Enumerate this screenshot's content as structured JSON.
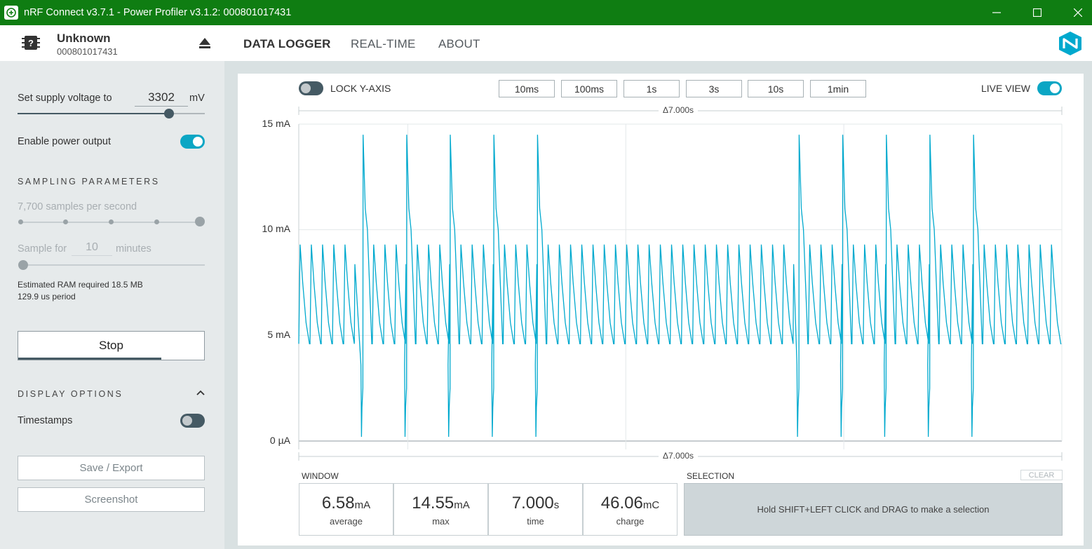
{
  "titlebar": {
    "title": "nRF Connect v3.7.1 - Power Profiler v3.1.2: 000801017431"
  },
  "window_controls": {
    "minimize": "—",
    "maximize": "☐",
    "close": "✕"
  },
  "header": {
    "device_name": "Unknown",
    "device_serial": "000801017431",
    "tabs": [
      {
        "label": "DATA LOGGER",
        "active": true
      },
      {
        "label": "REAL-TIME",
        "active": false
      },
      {
        "label": "ABOUT",
        "active": false
      }
    ],
    "icons": {
      "device": "chip-icon",
      "eject": "eject-icon",
      "logo": "nordic-logo"
    }
  },
  "sidebar": {
    "supply_label": "Set supply voltage to",
    "supply_value": "3302",
    "supply_unit": "mV",
    "supply_level_fraction": 0.81,
    "power_output_label": "Enable power output",
    "power_output_on": true,
    "sampling_title": "SAMPLING PARAMETERS",
    "samples_per_second": "7,700 samples per second",
    "sample_for_label": "Sample for",
    "sample_for_value": "10",
    "sample_for_unit": "minutes",
    "ram_required": "Estimated RAM required 18.5 MB",
    "period": "129.9 us period",
    "stop_label": "Stop",
    "stop_progress_fraction": 0.77,
    "display_title": "DISPLAY OPTIONS",
    "timestamps_label": "Timestamps",
    "timestamps_on": false,
    "save_label": "Save / Export",
    "screenshot_label": "Screenshot"
  },
  "chart_controls": {
    "lock_y_label": "LOCK Y-AXIS",
    "lock_y_on": false,
    "window_buttons": [
      "10ms",
      "100ms",
      "1s",
      "3s",
      "10s",
      "1min"
    ],
    "live_view_label": "LIVE VIEW",
    "live_view_on": true
  },
  "chart_data": {
    "type": "line",
    "y_ticks": [
      "15 mA",
      "10 mA",
      "5 mA",
      "0 µA"
    ],
    "ylim_mA": [
      0,
      15
    ],
    "window_seconds": 7.0,
    "delta_top": "Δ7.000s",
    "delta_bottom": "Δ7.000s",
    "grid": true,
    "series": [
      {
        "color": "#00a9ce",
        "baseline_mA": 4.6,
        "peak_mA": 9.3,
        "pulse_count": 68,
        "burst_times_s": [
          0.59,
          0.99,
          1.39,
          1.79,
          2.19,
          4.59,
          4.99,
          5.39,
          5.79,
          6.19
        ],
        "burst_peak_mA": 14.5,
        "burst_dip_mA": 0.2
      }
    ]
  },
  "stats": {
    "window_title": "WINDOW",
    "items": [
      {
        "value": "6.58",
        "unit": "mA",
        "label": "average"
      },
      {
        "value": "14.55",
        "unit": "mA",
        "label": "max"
      },
      {
        "value": "7.000",
        "unit": "s",
        "label": "time"
      },
      {
        "value": "46.06",
        "unit": "mC",
        "label": "charge"
      }
    ],
    "selection_title": "SELECTION",
    "clear_label": "CLEAR",
    "selection_hint": "Hold SHIFT+LEFT CLICK and DRAG to make a selection"
  }
}
